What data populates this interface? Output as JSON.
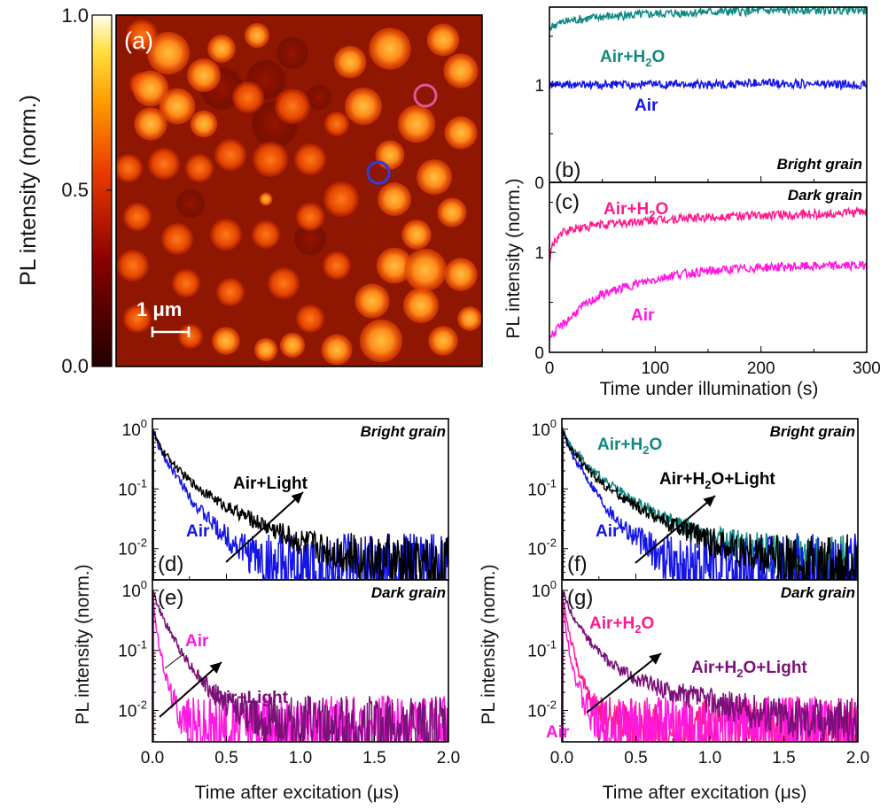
{
  "colors": {
    "air_bright": "#1515e6",
    "air_h2o_bright": "#0f8a82",
    "air_dark": "#ff18e0",
    "air_h2o_dark": "#ff1a8c",
    "air_light": "#000000",
    "dark_light": "#7a1078",
    "marker_pink": "#e0559a",
    "marker_blue": "#2a3fe0"
  },
  "panel_a": {
    "label": "(a)",
    "scalebar_label": "1 μm",
    "colorbar": {
      "label": "PL intensity (norm.)",
      "ticks": [
        "1.0",
        "0.5",
        "0.0"
      ],
      "range": [
        0,
        1
      ]
    },
    "markers": [
      {
        "name": "pink-circle-marker",
        "grain": "dark"
      },
      {
        "name": "blue-circle-marker",
        "grain": "bright"
      }
    ]
  },
  "panels_bc": {
    "shared_ylabel": "PL intensity (norm.)",
    "xlabel": "Time under illumination (s)",
    "xticks": [
      "0",
      "100",
      "200",
      "300"
    ]
  },
  "panels_defg": {
    "shared_ylabel": "PL intensity (norm.)",
    "xlabel": "Time after excitation (μs)",
    "xticks": [
      "0.0",
      "0.5",
      "1.0",
      "1.5",
      "2.0"
    ],
    "yticks": [
      "10",
      "10",
      "10"
    ],
    "ytick_exps": [
      "0",
      "-1",
      "-2"
    ]
  },
  "chart_data": [
    {
      "panel": "b",
      "label": "(b)",
      "type": "line",
      "annotation": "Bright grain",
      "xlim": [
        0,
        300
      ],
      "ylim": [
        0,
        1.8
      ],
      "yticks": [
        "0",
        "1"
      ],
      "series": [
        {
          "name": "Air+H2O",
          "color": "#0f8a82",
          "x": [
            0,
            5,
            20,
            50,
            100,
            150,
            200,
            250,
            300
          ],
          "y": [
            1.58,
            1.62,
            1.66,
            1.7,
            1.73,
            1.75,
            1.76,
            1.77,
            1.77
          ]
        },
        {
          "name": "Air",
          "color": "#1515e6",
          "x": [
            0,
            50,
            100,
            150,
            200,
            250,
            300
          ],
          "y": [
            1.0,
            1.0,
            1.01,
            1.0,
            1.02,
            1.01,
            1.0
          ]
        }
      ]
    },
    {
      "panel": "c",
      "label": "(c)",
      "type": "line",
      "annotation": "Dark grain",
      "xlim": [
        0,
        300
      ],
      "ylim": [
        0,
        1.7
      ],
      "yticks": [
        "0",
        "1"
      ],
      "series": [
        {
          "name": "Air+H2O",
          "color": "#ff1a8c",
          "x": [
            0,
            3,
            10,
            25,
            50,
            100,
            150,
            200,
            250,
            300
          ],
          "y": [
            0.9,
            1.08,
            1.18,
            1.24,
            1.28,
            1.32,
            1.35,
            1.37,
            1.38,
            1.4
          ]
        },
        {
          "name": "Air",
          "color": "#ff18e0",
          "x": [
            0,
            5,
            15,
            30,
            50,
            80,
            120,
            160,
            200,
            250,
            300
          ],
          "y": [
            0.15,
            0.2,
            0.3,
            0.45,
            0.58,
            0.68,
            0.78,
            0.82,
            0.85,
            0.86,
            0.87
          ]
        }
      ]
    },
    {
      "panel": "d",
      "label": "(d)",
      "type": "line",
      "annotation": "Bright grain",
      "log_y": true,
      "xlim": [
        0,
        2.0
      ],
      "ylim": [
        0.003,
        1.5
      ],
      "series": [
        {
          "name": "Air",
          "color": "#1515e6",
          "x": [
            0,
            0.05,
            0.1,
            0.2,
            0.3,
            0.45,
            0.6,
            0.8,
            1.0
          ],
          "y": [
            1.0,
            0.45,
            0.28,
            0.12,
            0.05,
            0.02,
            0.01,
            0.005,
            0.004
          ]
        },
        {
          "name": "Air+Light",
          "color": "#000000",
          "x": [
            0,
            0.05,
            0.1,
            0.2,
            0.3,
            0.5,
            0.75,
            1.0,
            1.25,
            1.5,
            1.75,
            2.0
          ],
          "y": [
            1.0,
            0.5,
            0.35,
            0.18,
            0.11,
            0.05,
            0.025,
            0.013,
            0.009,
            0.006,
            0.005,
            0.0045
          ]
        }
      ]
    },
    {
      "panel": "e",
      "label": "(e)",
      "type": "line",
      "annotation": "Dark grain",
      "log_y": true,
      "xlim": [
        0,
        2.0
      ],
      "ylim": [
        0.003,
        1.5
      ],
      "series": [
        {
          "name": "Air",
          "color": "#ff18e0",
          "x": [
            0,
            0.02,
            0.05,
            0.1,
            0.15,
            0.2,
            0.3
          ],
          "y": [
            1.0,
            0.3,
            0.1,
            0.03,
            0.013,
            0.008,
            0.005
          ]
        },
        {
          "name": "Air+Light",
          "color": "#7a1078",
          "x": [
            0,
            0.05,
            0.1,
            0.2,
            0.3,
            0.4,
            0.5,
            0.7,
            0.9,
            1.2,
            1.5,
            2.0
          ],
          "y": [
            1.0,
            0.45,
            0.25,
            0.09,
            0.04,
            0.02,
            0.013,
            0.008,
            0.006,
            0.005,
            0.0045,
            0.004
          ]
        }
      ]
    },
    {
      "panel": "f",
      "label": "(f)",
      "type": "line",
      "annotation": "Bright grain",
      "log_y": true,
      "xlim": [
        0,
        2.0
      ],
      "ylim": [
        0.003,
        1.5
      ],
      "series": [
        {
          "name": "Air+H2O",
          "color": "#0f8a82",
          "x": [
            0,
            0.05,
            0.1,
            0.2,
            0.3,
            0.5,
            0.75,
            1.0,
            1.25,
            1.5,
            1.75,
            2.0
          ],
          "y": [
            1.0,
            0.55,
            0.4,
            0.22,
            0.13,
            0.06,
            0.028,
            0.015,
            0.01,
            0.007,
            0.006,
            0.005
          ]
        },
        {
          "name": "Air",
          "color": "#1515e6",
          "x": [
            0,
            0.05,
            0.1,
            0.2,
            0.3,
            0.45,
            0.6,
            0.8,
            1.0
          ],
          "y": [
            1.0,
            0.45,
            0.28,
            0.12,
            0.05,
            0.02,
            0.01,
            0.005,
            0.004
          ]
        },
        {
          "name": "Air+H2O+Light",
          "color": "#000000",
          "x": [
            0,
            0.05,
            0.1,
            0.2,
            0.3,
            0.5,
            0.75,
            1.0,
            1.25,
            1.5,
            1.75,
            2.0
          ],
          "y": [
            1.0,
            0.5,
            0.35,
            0.18,
            0.11,
            0.05,
            0.025,
            0.013,
            0.009,
            0.006,
            0.005,
            0.0045
          ]
        }
      ]
    },
    {
      "panel": "g",
      "label": "(g)",
      "type": "line",
      "annotation": "Dark grain",
      "log_y": true,
      "xlim": [
        0,
        2.0
      ],
      "ylim": [
        0.003,
        1.5
      ],
      "series": [
        {
          "name": "Air+H2O",
          "color": "#ff1a8c",
          "x": [
            0,
            0.03,
            0.06,
            0.1,
            0.15,
            0.2,
            0.3,
            0.4,
            0.5
          ],
          "y": [
            1.0,
            0.35,
            0.15,
            0.06,
            0.025,
            0.013,
            0.008,
            0.006,
            0.005
          ]
        },
        {
          "name": "Air",
          "color": "#ff18e0",
          "x": [
            0,
            0.02,
            0.05,
            0.1,
            0.15,
            0.2,
            0.3
          ],
          "y": [
            1.0,
            0.3,
            0.1,
            0.03,
            0.013,
            0.008,
            0.005
          ]
        },
        {
          "name": "Air+H2O+Light",
          "color": "#7a1078",
          "x": [
            0,
            0.05,
            0.1,
            0.2,
            0.3,
            0.4,
            0.5,
            0.7,
            0.9,
            1.2,
            1.5,
            1.75,
            2.0
          ],
          "y": [
            1.0,
            0.5,
            0.3,
            0.13,
            0.07,
            0.045,
            0.033,
            0.022,
            0.016,
            0.011,
            0.008,
            0.007,
            0.006
          ]
        }
      ]
    }
  ]
}
